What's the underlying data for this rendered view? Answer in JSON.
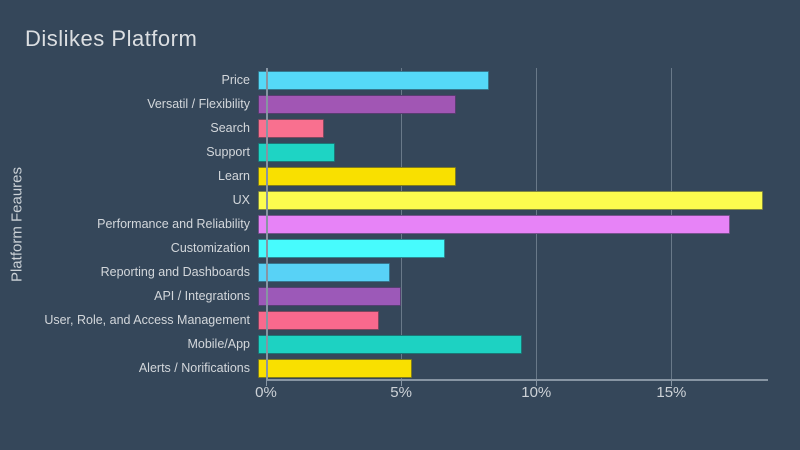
{
  "colors": {
    "background": "#35475a",
    "text": "#d3d7db",
    "grid": "#94a2b0",
    "axis": "#8795a3"
  },
  "chart_data": {
    "type": "bar",
    "orientation": "horizontal",
    "title": "Dislikes Platform",
    "xlabel": "",
    "ylabel": "Platform Feaures",
    "grid": true,
    "legend": false,
    "xlim": [
      0,
      18.5
    ],
    "x_ticks": [
      {
        "value": 0,
        "label": "0%"
      },
      {
        "value": 5,
        "label": "5%"
      },
      {
        "value": 10,
        "label": "10%"
      },
      {
        "value": 15,
        "label": "15%"
      }
    ],
    "categories": [
      "Price",
      "Versatil / Flexibility",
      "Search",
      "Support",
      "Learn",
      "UX",
      "Performance and Reliability",
      "Customization",
      "Reporting and Dashboards",
      "API / Integrations",
      "User, Role, and Access Management",
      "Mobile/App",
      "Alerts / Norifications"
    ],
    "values": [
      8.4,
      7.2,
      2.4,
      2.8,
      7.2,
      18.4,
      17.2,
      6.8,
      4.8,
      5.2,
      4.4,
      9.6,
      5.6
    ],
    "bar_colors": [
      "#55d9f8",
      "#a156b4",
      "#f9708f",
      "#1ed4c4",
      "#f9e000",
      "#fcfc4e",
      "#e783f7",
      "#47fbfd",
      "#58d2f6",
      "#9c59b8",
      "#f9698d",
      "#1dd2c2",
      "#f9e000"
    ]
  }
}
